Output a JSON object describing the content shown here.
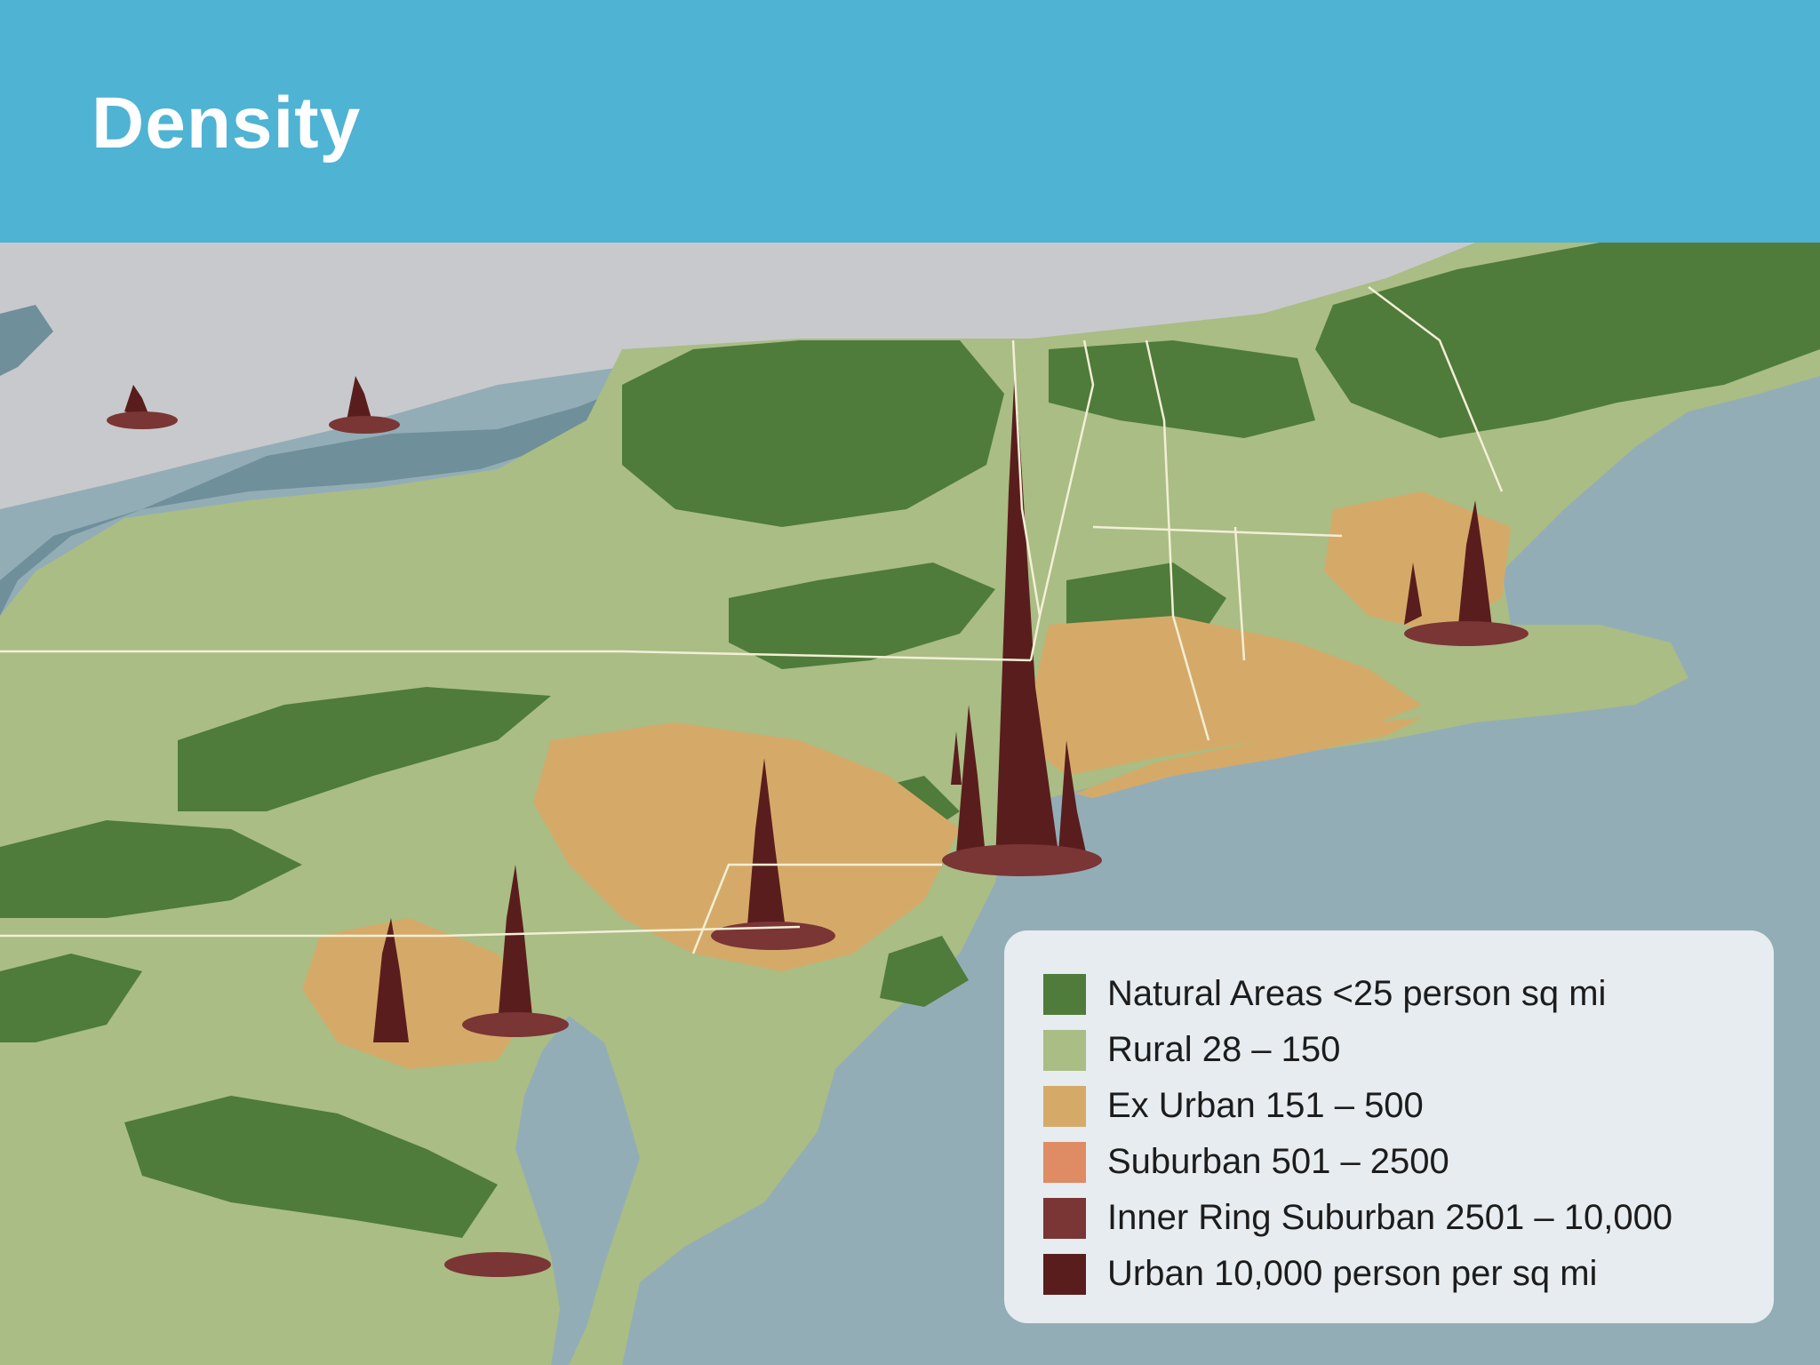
{
  "header": {
    "title": "Density",
    "background_color": "#4fb3d3"
  },
  "map": {
    "base_colors": {
      "land": "#a9bd85",
      "water": "#93adb7",
      "lake": "#6f8f9a",
      "canada": "#c8c9cc"
    }
  },
  "legend": {
    "items": [
      {
        "label": "Natural Areas <25 person sq mi",
        "color": "#4f7b3b"
      },
      {
        "label": "Rural 28 – 150",
        "color": "#a9bd85"
      },
      {
        "label": "Ex Urban 151 – 500",
        "color": "#d5aa68"
      },
      {
        "label": "Suburban 501 – 2500",
        "color": "#df8b63"
      },
      {
        "label": "Inner Ring Suburban 2501 – 10,000",
        "color": "#7a3535"
      },
      {
        "label": "Urban 10,000 person per sq mi",
        "color": "#5a1d1d"
      }
    ]
  }
}
